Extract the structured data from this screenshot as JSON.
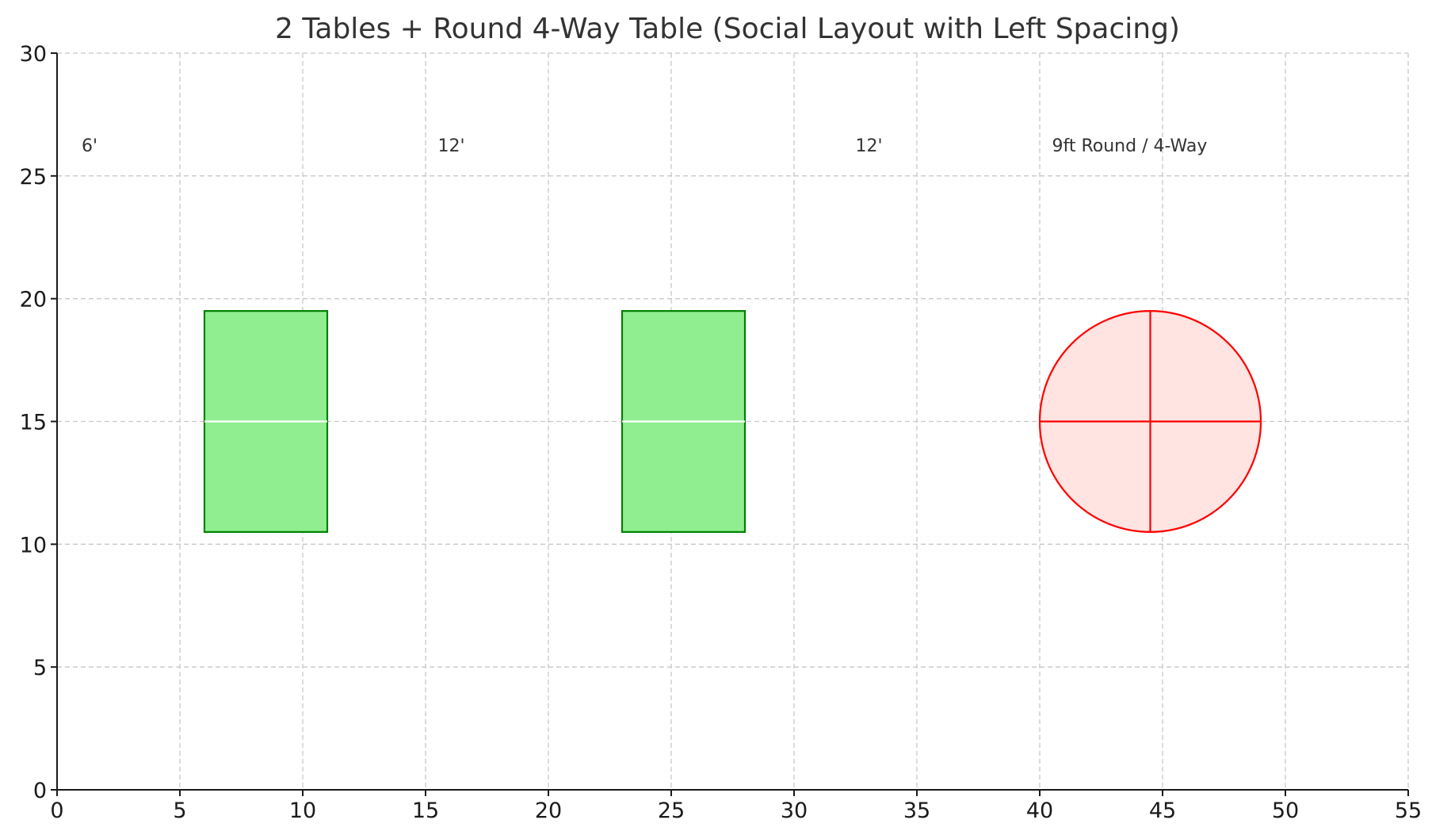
{
  "chart_data": {
    "type": "diagram",
    "title": "2 Tables + Round 4-Way Table (Social Layout with Left Spacing)",
    "xlim": [
      0,
      55
    ],
    "ylim": [
      0,
      30
    ],
    "xticks": [
      0,
      5,
      10,
      15,
      20,
      25,
      30,
      35,
      40,
      45,
      50,
      55
    ],
    "yticks": [
      0,
      5,
      10,
      15,
      20,
      25,
      30
    ],
    "grid": true,
    "tables": [
      {
        "name": "table-1",
        "shape": "rect",
        "x0": 6,
        "x1": 11,
        "y0": 10.5,
        "y1": 19.5,
        "divider_y": 15,
        "fill": "#90ee90",
        "stroke": "#008000"
      },
      {
        "name": "table-2",
        "shape": "rect",
        "x0": 23,
        "x1": 28,
        "y0": 10.5,
        "y1": 19.5,
        "divider_y": 15,
        "fill": "#90ee90",
        "stroke": "#008000"
      },
      {
        "name": "round-table",
        "shape": "circle",
        "cx": 44.5,
        "cy": 15,
        "r": 4.5,
        "fill": "#ffe4e1",
        "stroke": "#ff0000"
      }
    ],
    "annotations": [
      {
        "text": "6'",
        "x": 1,
        "y": 26
      },
      {
        "text": "12'",
        "x": 15.5,
        "y": 26
      },
      {
        "text": "12'",
        "x": 32.5,
        "y": 26
      },
      {
        "text": "9ft Round / 4-Way",
        "x": 40.5,
        "y": 26
      }
    ]
  }
}
